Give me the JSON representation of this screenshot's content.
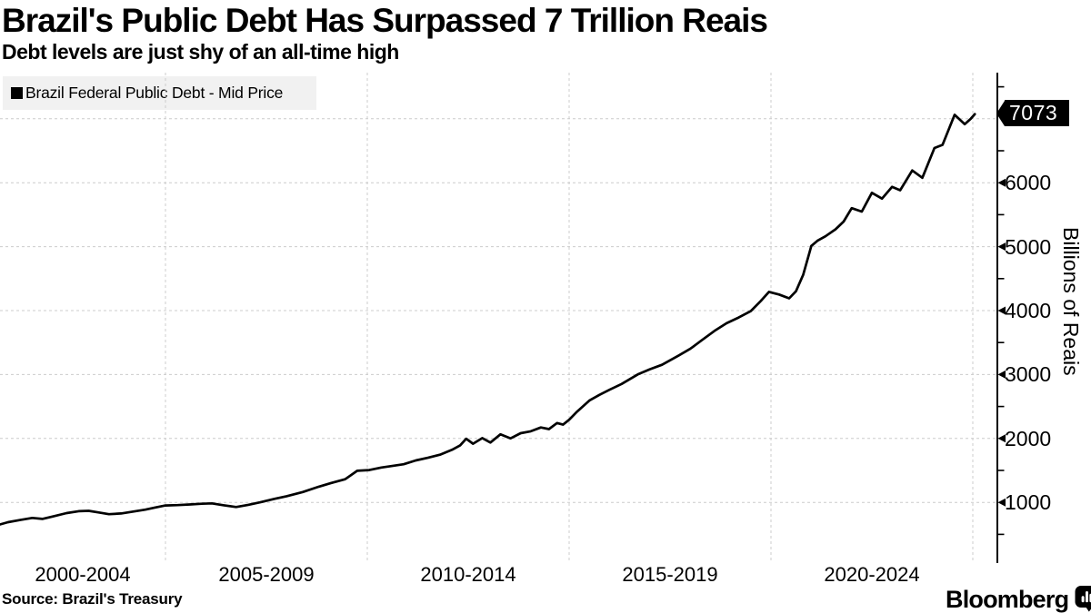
{
  "header": {
    "title": "Brazil's Public Debt Has Surpassed 7 Trillion Reais",
    "subtitle": "Debt levels are just shy of an all-time high"
  },
  "legend": {
    "label": "Brazil Federal Public Debt - Mid Price"
  },
  "chart_data": {
    "type": "line",
    "title": "Brazil's Public Debt Has Surpassed 7 Trillion Reais",
    "subtitle": "Debt levels are just shy of an all-time high",
    "xlabel": "",
    "ylabel": "Billions of Reais",
    "legend_position": "top-left",
    "grid": "dashed",
    "x_tick_labels": [
      "2000-2004",
      "2005-2009",
      "2010-2014",
      "2015-2019",
      "2020-2024"
    ],
    "x_gridline_years": [
      2005,
      2010,
      2015,
      2020,
      2025
    ],
    "y_ticks": [
      1000,
      2000,
      3000,
      4000,
      5000,
      6000,
      7000
    ],
    "y_tick_labels": [
      "1000",
      "2000",
      "3000",
      "4000",
      "5000",
      "6000"
    ],
    "ylim": [
      0,
      7700
    ],
    "x_range_years": [
      2000.9,
      2025.6
    ],
    "last_value": 7073,
    "last_value_label": "7073",
    "series": [
      {
        "name": "Brazil Federal Public Debt - Mid Price",
        "color": "#000000",
        "points": [
          [
            2000.9,
            655
          ],
          [
            2001.1,
            690
          ],
          [
            2001.4,
            725
          ],
          [
            2001.7,
            757
          ],
          [
            2001.95,
            742
          ],
          [
            2002.2,
            778
          ],
          [
            2002.55,
            832
          ],
          [
            2002.85,
            862
          ],
          [
            2003.1,
            868
          ],
          [
            2003.35,
            842
          ],
          [
            2003.6,
            816
          ],
          [
            2003.9,
            826
          ],
          [
            2004.2,
            856
          ],
          [
            2004.5,
            886
          ],
          [
            2004.75,
            920
          ],
          [
            2005.0,
            952
          ],
          [
            2005.3,
            958
          ],
          [
            2005.6,
            968
          ],
          [
            2005.9,
            978
          ],
          [
            2006.15,
            985
          ],
          [
            2006.45,
            955
          ],
          [
            2006.75,
            928
          ],
          [
            2007.05,
            962
          ],
          [
            2007.35,
            1002
          ],
          [
            2007.7,
            1056
          ],
          [
            2008.0,
            1096
          ],
          [
            2008.4,
            1162
          ],
          [
            2008.8,
            1246
          ],
          [
            2009.1,
            1302
          ],
          [
            2009.45,
            1362
          ],
          [
            2009.75,
            1495
          ],
          [
            2010.05,
            1505
          ],
          [
            2010.35,
            1545
          ],
          [
            2010.6,
            1568
          ],
          [
            2010.9,
            1596
          ],
          [
            2011.2,
            1656
          ],
          [
            2011.5,
            1698
          ],
          [
            2011.8,
            1746
          ],
          [
            2012.1,
            1822
          ],
          [
            2012.3,
            1892
          ],
          [
            2012.45,
            1996
          ],
          [
            2012.62,
            1918
          ],
          [
            2012.85,
            2006
          ],
          [
            2013.05,
            1936
          ],
          [
            2013.3,
            2066
          ],
          [
            2013.55,
            2002
          ],
          [
            2013.8,
            2082
          ],
          [
            2014.05,
            2112
          ],
          [
            2014.3,
            2172
          ],
          [
            2014.5,
            2146
          ],
          [
            2014.7,
            2242
          ],
          [
            2014.85,
            2216
          ],
          [
            2015.0,
            2292
          ],
          [
            2015.2,
            2422
          ],
          [
            2015.5,
            2592
          ],
          [
            2015.75,
            2682
          ],
          [
            2016.0,
            2762
          ],
          [
            2016.3,
            2852
          ],
          [
            2016.7,
            3002
          ],
          [
            2017.0,
            3082
          ],
          [
            2017.3,
            3152
          ],
          [
            2017.7,
            3292
          ],
          [
            2018.0,
            3402
          ],
          [
            2018.3,
            3542
          ],
          [
            2018.6,
            3682
          ],
          [
            2018.9,
            3802
          ],
          [
            2019.2,
            3892
          ],
          [
            2019.5,
            3992
          ],
          [
            2019.75,
            4152
          ],
          [
            2019.95,
            4292
          ],
          [
            2020.2,
            4252
          ],
          [
            2020.45,
            4192
          ],
          [
            2020.62,
            4302
          ],
          [
            2020.8,
            4562
          ],
          [
            2021.0,
            5012
          ],
          [
            2021.15,
            5092
          ],
          [
            2021.35,
            5162
          ],
          [
            2021.6,
            5272
          ],
          [
            2021.8,
            5392
          ],
          [
            2022.0,
            5602
          ],
          [
            2022.25,
            5548
          ],
          [
            2022.5,
            5842
          ],
          [
            2022.75,
            5752
          ],
          [
            2023.0,
            5936
          ],
          [
            2023.2,
            5882
          ],
          [
            2023.5,
            6192
          ],
          [
            2023.75,
            6076
          ],
          [
            2024.05,
            6542
          ],
          [
            2024.25,
            6592
          ],
          [
            2024.55,
            7062
          ],
          [
            2024.8,
            6916
          ],
          [
            2024.95,
            7002
          ],
          [
            2025.05,
            7073
          ]
        ]
      }
    ]
  },
  "footer": {
    "source": "Source: Brazil's Treasury",
    "brand": "Bloomberg",
    "brand_icon": "bloomberg-chart-bubble-icon"
  },
  "colors": {
    "background": "#ffffff",
    "line": "#000000",
    "grid": "#cccccc",
    "axis": "#000000",
    "legend_bg": "#f0f0f0",
    "badge_bg": "#000000",
    "badge_text": "#ffffff"
  }
}
